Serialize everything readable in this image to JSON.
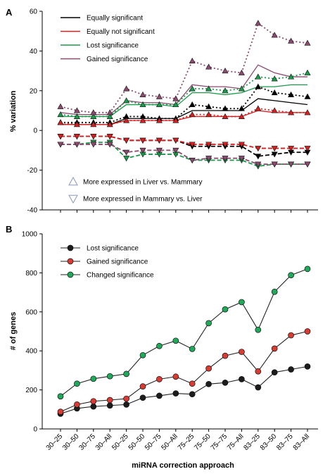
{
  "chart_data": [
    {
      "panel_label": "A",
      "type": "line",
      "ylabel": "% variation",
      "ylim": [
        -40,
        60
      ],
      "yticks": [
        -40,
        -20,
        0,
        20,
        40,
        60
      ],
      "categories": [
        "30–25",
        "30–50",
        "30–75",
        "30–All",
        "50–25",
        "50–50",
        "50–75",
        "50–All",
        "75–25",
        "75–50",
        "75–75",
        "75–All",
        "83–25",
        "83–50",
        "83–75",
        "83–All"
      ],
      "legend": {
        "position": "top-left",
        "entries": [
          {
            "label": "Equally significant",
            "color": "#000000"
          },
          {
            "label": "Equally not significant",
            "color": "#d62020"
          },
          {
            "label": "Lost significance",
            "color": "#1a9a4a"
          },
          {
            "label": "Gained significance",
            "color": "#8b4a6e"
          }
        ],
        "marker_entries": [
          {
            "label": "More expressed in Liver vs. Mammary",
            "marker": "triangle-up"
          },
          {
            "label": "More expressed in Mammary vs. Liver",
            "marker": "triangle-down"
          }
        ]
      },
      "series": [
        {
          "color": "#000000",
          "style": "solid",
          "marker": "none",
          "values": [
            3,
            3,
            3,
            3,
            6,
            6,
            6,
            6,
            10,
            10,
            10,
            10,
            16,
            15,
            14,
            13
          ]
        },
        {
          "color": "#d62020",
          "style": "solid",
          "marker": "none",
          "values": [
            3,
            3,
            3,
            3,
            5,
            5,
            5,
            5,
            7,
            7,
            7,
            7,
            10,
            9,
            9,
            9
          ]
        },
        {
          "color": "#1a9a4a",
          "style": "solid",
          "marker": "none",
          "values": [
            7,
            7,
            7,
            7,
            13,
            13,
            13,
            12,
            19,
            19,
            18,
            19,
            22,
            22,
            23,
            23
          ]
        },
        {
          "color": "#8b4a6e",
          "style": "solid",
          "marker": "none",
          "values": [
            9,
            8,
            8,
            8,
            15,
            14,
            14,
            13,
            23,
            22,
            22,
            21,
            33,
            29,
            27,
            27
          ]
        },
        {
          "color": "#000000",
          "style": "dotted",
          "marker": "triangle-up",
          "values": [
            4,
            4,
            4,
            4,
            7,
            7,
            6,
            6,
            13,
            12,
            11,
            11,
            22,
            19,
            18,
            17
          ]
        },
        {
          "color": "#d62020",
          "style": "dotted",
          "marker": "triangle-up",
          "values": [
            4,
            3,
            3,
            3,
            5,
            5,
            5,
            5,
            8,
            8,
            7,
            7,
            11,
            10,
            9,
            9
          ]
        },
        {
          "color": "#1a9a4a",
          "style": "dotted",
          "marker": "triangle-up",
          "values": [
            8,
            7,
            7,
            7,
            15,
            13,
            13,
            13,
            21,
            21,
            20,
            21,
            27,
            26,
            27,
            29
          ]
        },
        {
          "color": "#8b4a6e",
          "style": "dotted",
          "marker": "triangle-up",
          "values": [
            12,
            10,
            9,
            9,
            21,
            18,
            17,
            16,
            35,
            32,
            30,
            29,
            54,
            48,
            45,
            44
          ]
        },
        {
          "color": "#000000",
          "style": "dashed",
          "marker": "triangle-down",
          "values": [
            -3,
            -3,
            -3,
            -3,
            -5,
            -5,
            -5,
            -5,
            -8,
            -8,
            -8,
            -8,
            -13,
            -12,
            -11,
            -11
          ]
        },
        {
          "color": "#d62020",
          "style": "dashed",
          "marker": "triangle-down",
          "values": [
            -3,
            -3,
            -3,
            -3,
            -5,
            -5,
            -5,
            -5,
            -7,
            -7,
            -7,
            -7,
            -9,
            -9,
            -9,
            -9
          ]
        },
        {
          "color": "#1a9a4a",
          "style": "dashed",
          "marker": "triangle-down",
          "values": [
            -7,
            -7,
            -6,
            -6,
            -14,
            -12,
            -12,
            -12,
            -15,
            -15,
            -15,
            -15,
            -18,
            -17,
            -17,
            -17
          ]
        },
        {
          "color": "#8b4a6e",
          "style": "dashed",
          "marker": "triangle-down",
          "values": [
            -7,
            -7,
            -7,
            -7,
            -11,
            -10,
            -10,
            -10,
            -15,
            -14,
            -14,
            -14,
            -17,
            -17,
            -17,
            -17
          ]
        }
      ]
    },
    {
      "panel_label": "B",
      "type": "line",
      "xlabel": "miRNA correction approach",
      "ylabel": "# of genes",
      "ylim": [
        0,
        1000
      ],
      "yticks": [
        0,
        200,
        400,
        600,
        800,
        1000
      ],
      "categories": [
        "30–25",
        "30–50",
        "30–75",
        "30–All",
        "50–25",
        "50–50",
        "50–75",
        "50–All",
        "75–25",
        "75–50",
        "75–75",
        "75–All",
        "83–25",
        "83–50",
        "83–75",
        "83–All"
      ],
      "legend": {
        "position": "top-left"
      },
      "series": [
        {
          "name": "Lost significance",
          "color": "#1c1c1c",
          "values": [
            78,
            105,
            115,
            120,
            125,
            160,
            170,
            182,
            178,
            230,
            237,
            255,
            213,
            290,
            305,
            320
          ]
        },
        {
          "name": "Gained significance",
          "color": "#d93a32",
          "values": [
            88,
            125,
            142,
            148,
            155,
            218,
            255,
            268,
            232,
            310,
            375,
            395,
            295,
            412,
            480,
            500
          ]
        },
        {
          "name": "Changed significance",
          "color": "#1faa5a",
          "values": [
            167,
            232,
            257,
            270,
            282,
            378,
            425,
            452,
            410,
            542,
            613,
            650,
            508,
            703,
            788,
            820
          ]
        }
      ]
    }
  ]
}
